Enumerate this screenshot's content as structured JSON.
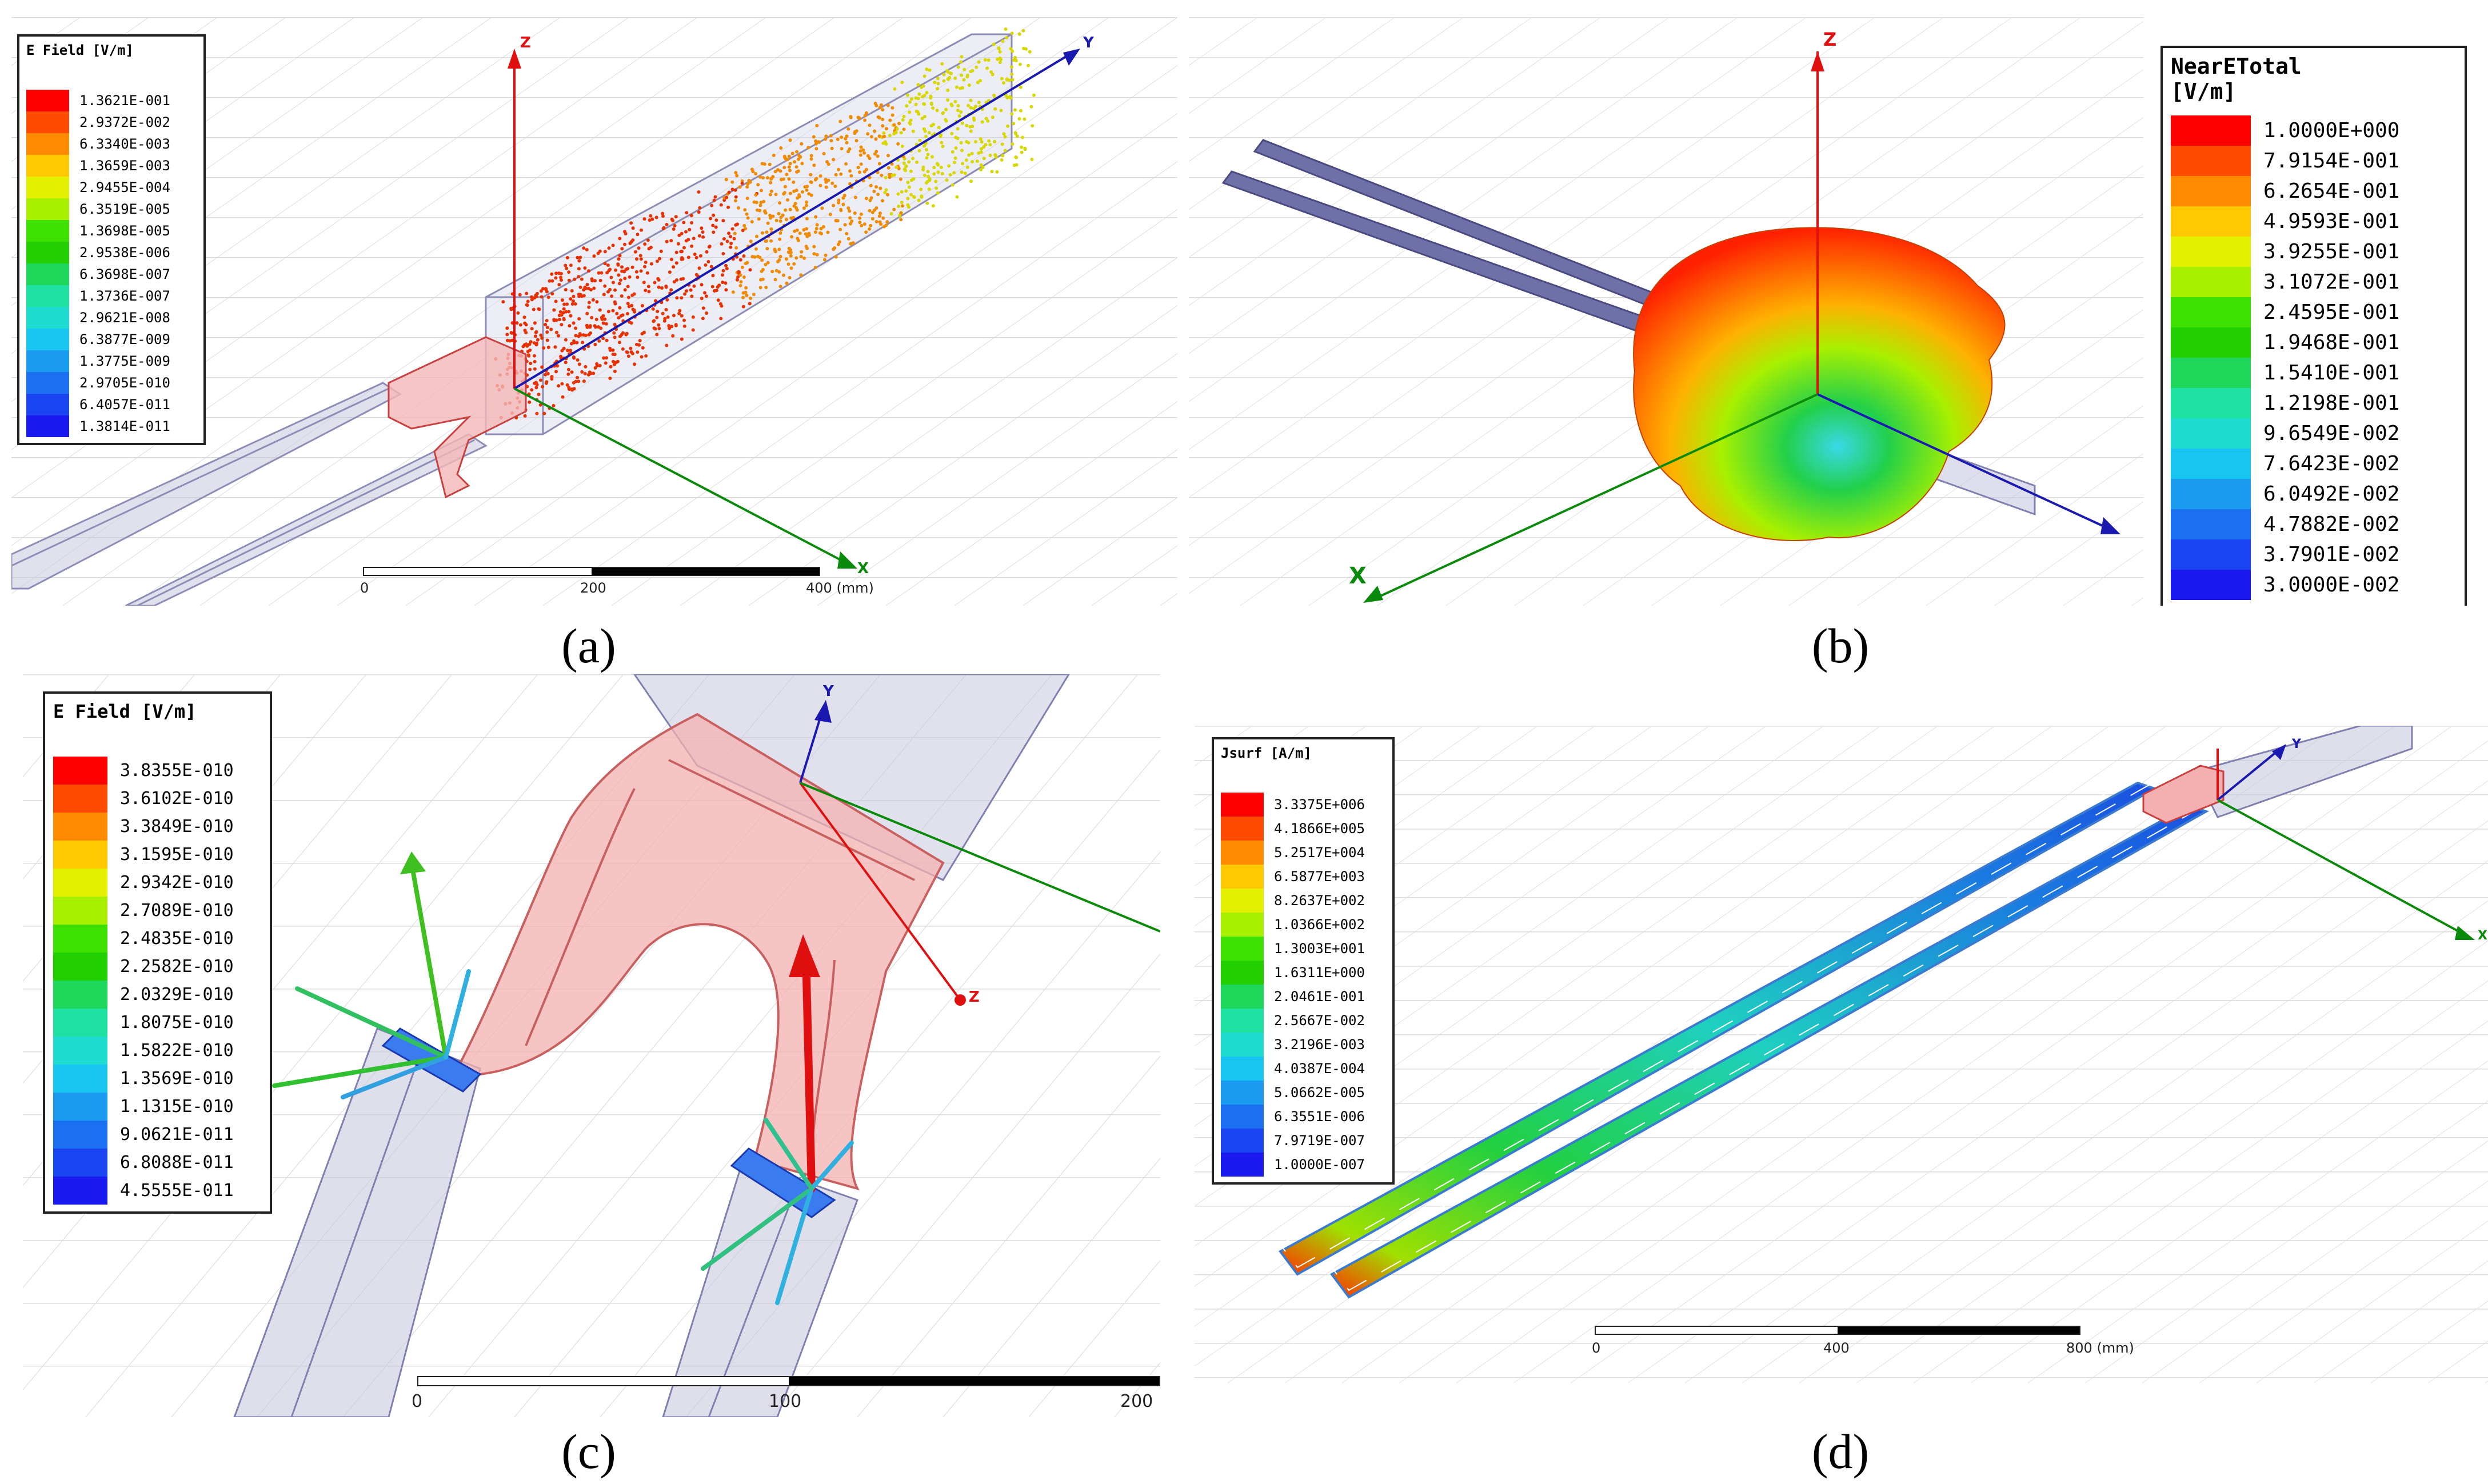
{
  "captions": [
    "(a)",
    "(b)",
    "(c)",
    "(d)"
  ],
  "panel_a": {
    "legend": {
      "title": "E Field [V/m]",
      "labels": [
        "1.3621E-001",
        "2.9372E-002",
        "6.3340E-003",
        "1.3659E-003",
        "2.9455E-004",
        "6.3519E-005",
        "1.3698E-005",
        "2.9538E-006",
        "6.3698E-007",
        "1.3736E-007",
        "2.9621E-008",
        "6.3877E-009",
        "1.3775E-009",
        "2.9705E-010",
        "6.4057E-011",
        "1.3814E-011"
      ],
      "colors": [
        "#ff0000",
        "#ff4b00",
        "#ff8a00",
        "#ffc800",
        "#e4f000",
        "#a8f000",
        "#3ee000",
        "#22d000",
        "#1ed65a",
        "#1ee0a0",
        "#1edcd0",
        "#18c4f0",
        "#1a9cf0",
        "#1a70f0",
        "#1a44f0",
        "#1a1af0"
      ]
    },
    "axes": {
      "z": "Z",
      "y": "Y",
      "x": "X"
    },
    "ruler": {
      "labels": [
        "0",
        "200",
        "400 (mm)"
      ]
    }
  },
  "panel_b": {
    "legend": {
      "title": "NearETotal\n[V/m]",
      "labels": [
        "1.0000E+000",
        "7.9154E-001",
        "6.2654E-001",
        "4.9593E-001",
        "3.9255E-001",
        "3.1072E-001",
        "2.4595E-001",
        "1.9468E-001",
        "1.5410E-001",
        "1.2198E-001",
        "9.6549E-002",
        "7.6423E-002",
        "6.0492E-002",
        "4.7882E-002",
        "3.7901E-002",
        "3.0000E-002"
      ],
      "colors": [
        "#ff0000",
        "#ff4b00",
        "#ff8a00",
        "#ffc800",
        "#e4f000",
        "#a8f000",
        "#3ee000",
        "#22d000",
        "#1ed65a",
        "#1ee0a0",
        "#1edcd0",
        "#18c4f0",
        "#1a9cf0",
        "#1a70f0",
        "#1a44f0",
        "#1a1af0"
      ]
    },
    "axes": {
      "z": "Z",
      "x": "X"
    }
  },
  "panel_c": {
    "legend": {
      "title": "E Field [V/m]",
      "labels": [
        "3.8355E-010",
        "3.6102E-010",
        "3.3849E-010",
        "3.1595E-010",
        "2.9342E-010",
        "2.7089E-010",
        "2.4835E-010",
        "2.2582E-010",
        "2.0329E-010",
        "1.8075E-010",
        "1.5822E-010",
        "1.3569E-010",
        "1.1315E-010",
        "9.0621E-011",
        "6.8088E-011",
        "4.5555E-011"
      ],
      "colors": [
        "#ff0000",
        "#ff4b00",
        "#ff8a00",
        "#ffc800",
        "#e4f000",
        "#a8f000",
        "#3ee000",
        "#22d000",
        "#1ed65a",
        "#1ee0a0",
        "#1edcd0",
        "#18c4f0",
        "#1a9cf0",
        "#1a70f0",
        "#1a44f0",
        "#1a1af0"
      ]
    },
    "axes": {
      "y": "Y",
      "z": "Z"
    },
    "ruler": {
      "labels": [
        "0",
        "100",
        "200"
      ]
    }
  },
  "panel_d": {
    "legend": {
      "title": "Jsurf [A/m]",
      "labels": [
        "3.3375E+006",
        "4.1866E+005",
        "5.2517E+004",
        "6.5877E+003",
        "8.2637E+002",
        "1.0366E+002",
        "1.3003E+001",
        "1.6311E+000",
        "2.0461E-001",
        "2.5667E-002",
        "3.2196E-003",
        "4.0387E-004",
        "5.0662E-005",
        "6.3551E-006",
        "7.9719E-007",
        "1.0000E-007"
      ],
      "colors": [
        "#ff0000",
        "#ff4b00",
        "#ff8a00",
        "#ffc800",
        "#e4f000",
        "#a8f000",
        "#3ee000",
        "#22d000",
        "#1ed65a",
        "#1ee0a0",
        "#1edcd0",
        "#18c4f0",
        "#1a9cf0",
        "#1a70f0",
        "#1a44f0",
        "#1a1af0"
      ]
    },
    "axes": {
      "y": "Y",
      "x": "X"
    },
    "ruler": {
      "labels": [
        "0",
        "400",
        "800 (mm)"
      ]
    }
  }
}
